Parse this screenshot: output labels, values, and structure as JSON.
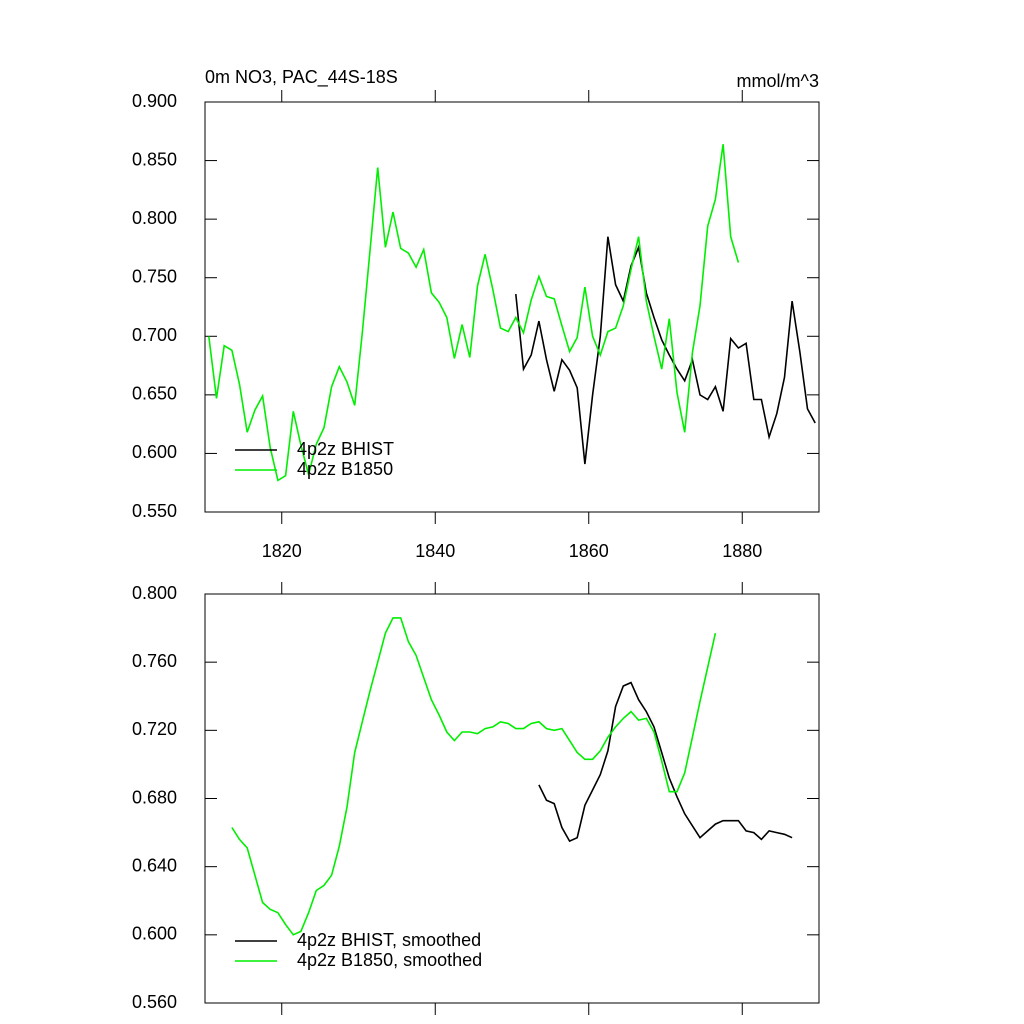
{
  "chart_data": [
    {
      "type": "line",
      "title": "0m NO3, PAC_44S-18S",
      "units": "mmol/m^3",
      "xlim": [
        1810,
        1890
      ],
      "xticks": [
        1820,
        1840,
        1860,
        1880
      ],
      "ylim": [
        0.55,
        0.9
      ],
      "yticks": [
        {
          "value": 0.55,
          "label": "0.550"
        },
        {
          "value": 0.6,
          "label": "0.600"
        },
        {
          "value": 0.65,
          "label": "0.650"
        },
        {
          "value": 0.7,
          "label": "0.700"
        },
        {
          "value": 0.75,
          "label": "0.750"
        },
        {
          "value": 0.8,
          "label": "0.800"
        },
        {
          "value": 0.85,
          "label": "0.850"
        },
        {
          "value": 0.9,
          "label": "0.900"
        }
      ],
      "legend": "lower left",
      "series": [
        {
          "name": "4p2z BHIST",
          "color": "#000000",
          "x": [
            1850.5,
            1851.5,
            1852.5,
            1853.5,
            1854.5,
            1855.5,
            1856.5,
            1857.5,
            1858.5,
            1859.5,
            1860.5,
            1861.5,
            1862.5,
            1863.5,
            1864.5,
            1865.5,
            1866.5,
            1867.5,
            1868.5,
            1869.5,
            1870.5,
            1871.5,
            1872.5,
            1873.5,
            1874.5,
            1875.5,
            1876.5,
            1877.5,
            1878.5,
            1879.5,
            1880.5,
            1881.5,
            1882.5,
            1883.5,
            1884.5,
            1885.5,
            1886.5,
            1887.5,
            1888.5,
            1889.5
          ],
          "values": [
            0.736,
            0.672,
            0.684,
            0.713,
            0.68,
            0.653,
            0.68,
            0.671,
            0.656,
            0.591,
            0.65,
            0.7,
            0.785,
            0.744,
            0.73,
            0.76,
            0.776,
            0.737,
            0.716,
            0.697,
            0.684,
            0.672,
            0.662,
            0.68,
            0.65,
            0.646,
            0.657,
            0.636,
            0.698,
            0.69,
            0.694,
            0.646,
            0.646,
            0.614,
            0.634,
            0.665,
            0.73,
            0.687,
            0.638,
            0.626
          ]
        },
        {
          "name": "4p2z B1850",
          "color": "#00ee00",
          "x": [
            1810.5,
            1811.5,
            1812.5,
            1813.5,
            1814.5,
            1815.5,
            1816.5,
            1817.5,
            1818.5,
            1819.5,
            1820.5,
            1821.5,
            1822.5,
            1823.5,
            1824.5,
            1825.5,
            1826.5,
            1827.5,
            1828.5,
            1829.5,
            1830.5,
            1831.5,
            1832.5,
            1833.5,
            1834.5,
            1835.5,
            1836.5,
            1837.5,
            1838.5,
            1839.5,
            1840.5,
            1841.5,
            1842.5,
            1843.5,
            1844.5,
            1845.5,
            1846.5,
            1847.5,
            1848.5,
            1849.5,
            1850.5,
            1851.5,
            1852.5,
            1853.5,
            1854.5,
            1855.5,
            1856.5,
            1857.5,
            1858.5,
            1859.5,
            1860.5,
            1861.5,
            1862.5,
            1863.5,
            1864.5,
            1865.5,
            1866.5,
            1867.5,
            1868.5,
            1869.5,
            1870.5,
            1871.5,
            1872.5,
            1873.5,
            1874.5,
            1875.5,
            1876.5,
            1877.5,
            1878.5,
            1879.5
          ],
          "values": [
            0.7,
            0.647,
            0.692,
            0.688,
            0.659,
            0.618,
            0.637,
            0.649,
            0.605,
            0.577,
            0.581,
            0.636,
            0.607,
            0.582,
            0.608,
            0.622,
            0.657,
            0.674,
            0.661,
            0.641,
            0.703,
            0.773,
            0.844,
            0.776,
            0.806,
            0.775,
            0.771,
            0.759,
            0.774,
            0.737,
            0.729,
            0.716,
            0.681,
            0.71,
            0.682,
            0.743,
            0.77,
            0.74,
            0.707,
            0.704,
            0.716,
            0.703,
            0.731,
            0.751,
            0.734,
            0.732,
            0.709,
            0.687,
            0.699,
            0.742,
            0.7,
            0.684,
            0.704,
            0.707,
            0.726,
            0.757,
            0.785,
            0.73,
            0.7,
            0.672,
            0.715,
            0.652,
            0.618,
            0.686,
            0.726,
            0.794,
            0.817,
            0.864,
            0.785,
            0.763
          ]
        }
      ]
    },
    {
      "type": "line",
      "xlim": [
        1810,
        1890
      ],
      "ylim": [
        0.56,
        0.8
      ],
      "yticks": [
        {
          "value": 0.56,
          "label": "0.560"
        },
        {
          "value": 0.6,
          "label": "0.600"
        },
        {
          "value": 0.64,
          "label": "0.640"
        },
        {
          "value": 0.68,
          "label": "0.680"
        },
        {
          "value": 0.72,
          "label": "0.720"
        },
        {
          "value": 0.76,
          "label": "0.760"
        },
        {
          "value": 0.8,
          "label": "0.800"
        }
      ],
      "legend": "lower left",
      "series": [
        {
          "name": "4p2z BHIST, smoothed",
          "color": "#000000",
          "x": [
            1853.5,
            1854.5,
            1855.5,
            1856.5,
            1857.5,
            1858.5,
            1859.5,
            1860.5,
            1861.5,
            1862.5,
            1863.5,
            1864.5,
            1865.5,
            1866.5,
            1867.5,
            1868.5,
            1869.5,
            1870.5,
            1871.5,
            1872.5,
            1873.5,
            1874.5,
            1875.5,
            1876.5,
            1877.5,
            1878.5,
            1879.5,
            1880.5,
            1881.5,
            1882.5,
            1883.5,
            1884.5,
            1885.5,
            1886.5
          ],
          "values": [
            0.688,
            0.679,
            0.677,
            0.663,
            0.655,
            0.657,
            0.676,
            0.685,
            0.694,
            0.708,
            0.734,
            0.746,
            0.748,
            0.738,
            0.731,
            0.722,
            0.707,
            0.692,
            0.681,
            0.671,
            0.664,
            0.657,
            0.661,
            0.665,
            0.667,
            0.667,
            0.667,
            0.661,
            0.66,
            0.656,
            0.661,
            0.66,
            0.659,
            0.657
          ]
        },
        {
          "name": "4p2z B1850, smoothed",
          "color": "#00ee00",
          "x": [
            1813.5,
            1814.5,
            1815.5,
            1816.5,
            1817.5,
            1818.5,
            1819.5,
            1820.5,
            1821.5,
            1822.5,
            1823.5,
            1824.5,
            1825.5,
            1826.5,
            1827.5,
            1828.5,
            1829.5,
            1830.5,
            1831.5,
            1832.5,
            1833.5,
            1834.5,
            1835.5,
            1836.5,
            1837.5,
            1838.5,
            1839.5,
            1840.5,
            1841.5,
            1842.5,
            1843.5,
            1844.5,
            1845.5,
            1846.5,
            1847.5,
            1848.5,
            1849.5,
            1850.5,
            1851.5,
            1852.5,
            1853.5,
            1854.5,
            1855.5,
            1856.5,
            1857.5,
            1858.5,
            1859.5,
            1860.5,
            1861.5,
            1862.5,
            1863.5,
            1864.5,
            1865.5,
            1866.5,
            1867.5,
            1868.5,
            1869.5,
            1870.5,
            1871.5,
            1872.5,
            1873.5,
            1874.5,
            1875.5,
            1876.5
          ],
          "values": [
            0.663,
            0.656,
            0.651,
            0.635,
            0.619,
            0.615,
            0.613,
            0.606,
            0.6,
            0.602,
            0.613,
            0.626,
            0.629,
            0.635,
            0.652,
            0.675,
            0.707,
            0.725,
            0.743,
            0.76,
            0.777,
            0.786,
            0.786,
            0.772,
            0.764,
            0.751,
            0.738,
            0.729,
            0.719,
            0.714,
            0.719,
            0.719,
            0.718,
            0.721,
            0.722,
            0.725,
            0.724,
            0.721,
            0.721,
            0.724,
            0.725,
            0.721,
            0.72,
            0.721,
            0.714,
            0.707,
            0.703,
            0.703,
            0.708,
            0.716,
            0.722,
            0.727,
            0.731,
            0.726,
            0.727,
            0.719,
            0.702,
            0.684,
            0.684,
            0.695,
            0.716,
            0.737,
            0.757,
            0.777
          ]
        }
      ]
    }
  ]
}
